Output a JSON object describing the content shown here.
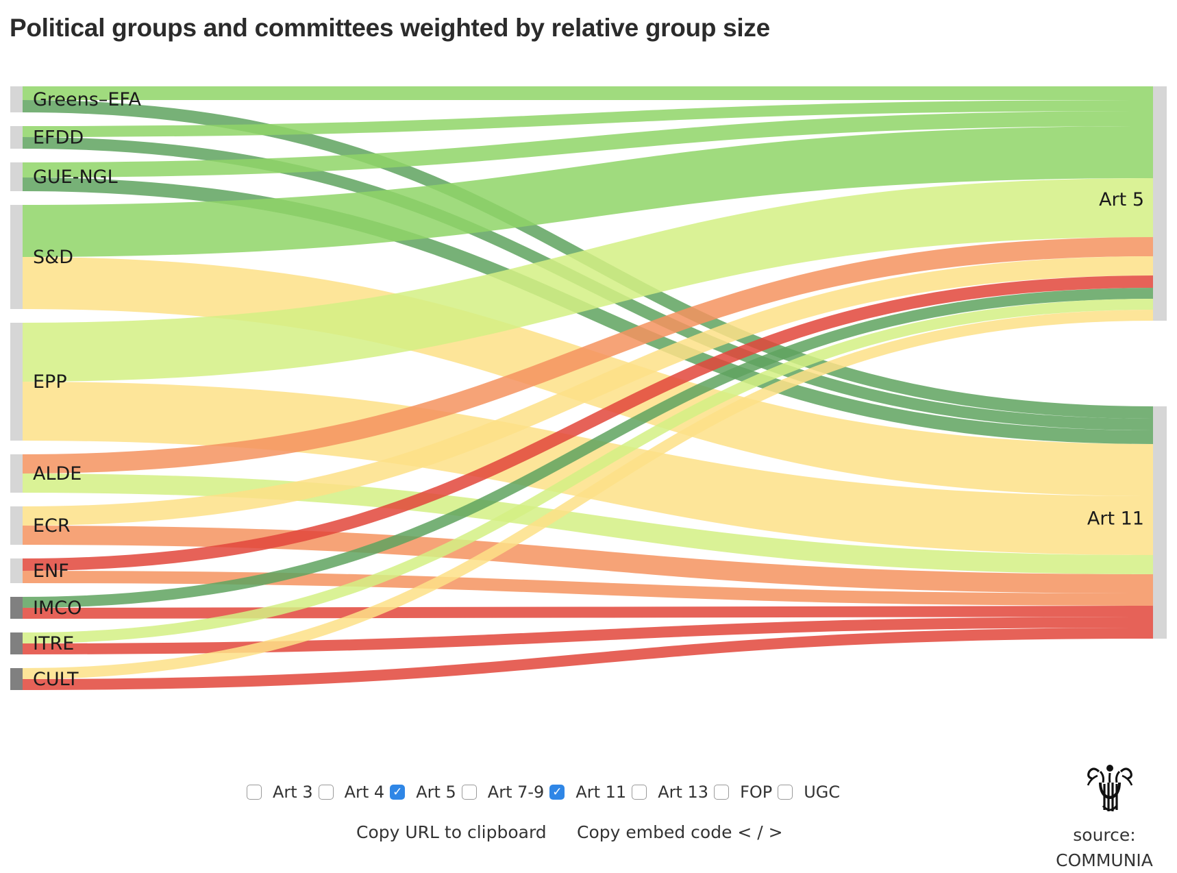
{
  "title": "Political groups and committees weighted by relative group size",
  "chart_data": {
    "type": "sankey",
    "title": "Political groups and committees weighted by relative group size",
    "sources": [
      {
        "name": "Greens–EFA",
        "kind": "group"
      },
      {
        "name": "EFDD",
        "kind": "group"
      },
      {
        "name": "GUE-NGL",
        "kind": "group"
      },
      {
        "name": "S&D",
        "kind": "group"
      },
      {
        "name": "EPP",
        "kind": "group"
      },
      {
        "name": "ALDE",
        "kind": "group"
      },
      {
        "name": "ECR",
        "kind": "group"
      },
      {
        "name": "ENF",
        "kind": "group"
      },
      {
        "name": "IMCO",
        "kind": "committee"
      },
      {
        "name": "ITRE",
        "kind": "committee"
      },
      {
        "name": "CULT",
        "kind": "committee"
      }
    ],
    "targets": [
      "Art 5",
      "Art 11"
    ],
    "flow_colors": {
      "dark_green": "#5fa35f",
      "green": "#8fd567",
      "light_green": "#d4f084",
      "yellow": "#fde187",
      "orange": "#f4935f",
      "red": "#e2473b"
    },
    "node_colors": {
      "group": "#d6d6d6",
      "committee": "#808080"
    },
    "links": [
      {
        "source": "Greens–EFA",
        "target": "Art 5",
        "value": 20,
        "color": "green"
      },
      {
        "source": "Greens–EFA",
        "target": "Art 11",
        "value": 18,
        "color": "dark_green"
      },
      {
        "source": "EFDD",
        "target": "Art 5",
        "value": 16,
        "color": "green"
      },
      {
        "source": "EFDD",
        "target": "Art 11",
        "value": 17,
        "color": "dark_green"
      },
      {
        "source": "GUE-NGL",
        "target": "Art 5",
        "value": 22,
        "color": "green"
      },
      {
        "source": "GUE-NGL",
        "target": "Art 11",
        "value": 20,
        "color": "dark_green"
      },
      {
        "source": "S&D",
        "target": "Art 5",
        "value": 76,
        "color": "green"
      },
      {
        "source": "S&D",
        "target": "Art 11",
        "value": 76,
        "color": "yellow"
      },
      {
        "source": "EPP",
        "target": "Art 5",
        "value": 86,
        "color": "light_green"
      },
      {
        "source": "EPP",
        "target": "Art 11",
        "value": 86,
        "color": "yellow"
      },
      {
        "source": "ALDE",
        "target": "Art 5",
        "value": 28,
        "color": "orange"
      },
      {
        "source": "ALDE",
        "target": "Art 11",
        "value": 28,
        "color": "light_green"
      },
      {
        "source": "ECR",
        "target": "Art 5",
        "value": 28,
        "color": "yellow"
      },
      {
        "source": "ECR",
        "target": "Art 11",
        "value": 28,
        "color": "orange"
      },
      {
        "source": "ENF",
        "target": "Art 5",
        "value": 18,
        "color": "red"
      },
      {
        "source": "ENF",
        "target": "Art 11",
        "value": 18,
        "color": "orange"
      },
      {
        "source": "IMCO",
        "target": "Art 5",
        "value": 16,
        "color": "dark_green"
      },
      {
        "source": "IMCO",
        "target": "Art 11",
        "value": 16,
        "color": "red"
      },
      {
        "source": "ITRE",
        "target": "Art 5",
        "value": 16,
        "color": "light_green"
      },
      {
        "source": "ITRE",
        "target": "Art 11",
        "value": 16,
        "color": "red"
      },
      {
        "source": "CULT",
        "target": "Art 5",
        "value": 16,
        "color": "yellow"
      },
      {
        "source": "CULT",
        "target": "Art 11",
        "value": 16,
        "color": "red"
      }
    ]
  },
  "filters": [
    {
      "label": "Art 3",
      "checked": false
    },
    {
      "label": "Art 4",
      "checked": false
    },
    {
      "label": "Art 5",
      "checked": true
    },
    {
      "label": "Art 7-9",
      "checked": false
    },
    {
      "label": "Art 11",
      "checked": true
    },
    {
      "label": "Art 13",
      "checked": false
    },
    {
      "label": "FOP",
      "checked": false
    },
    {
      "label": "UGC",
      "checked": false
    }
  ],
  "actions": {
    "copy_url": "Copy URL to clipboard",
    "copy_embed": "Copy embed code < / >"
  },
  "source": {
    "label": "source:",
    "name": "COMMUNIA",
    "logo_icon": "communia-logo-icon"
  }
}
